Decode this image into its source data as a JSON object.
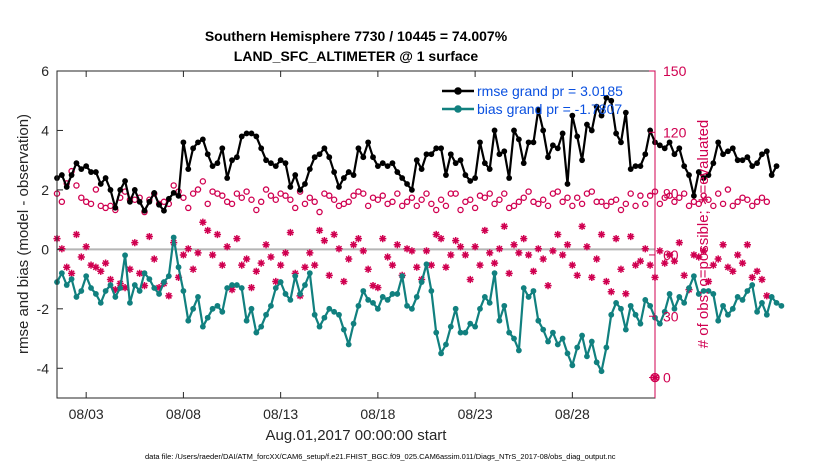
{
  "chart_data": {
    "type": "line",
    "title_line1": "Southern Hemisphere 7730 / 10445 = 74.007%",
    "title_line2": "LAND_SFC_ALTIMETER @ 1 surface",
    "xlabel": "Aug.01,2017 00:00:00 start",
    "ylabel_left": "rmse and bias (model - observation)",
    "ylabel_right": "# of obs: o=possible; ∗=evaluated",
    "xlim": [
      1.5,
      32.25
    ],
    "ylim_left": [
      -5,
      6
    ],
    "ylim_right": [
      -10,
      150
    ],
    "x_ticks": [
      3,
      8,
      13,
      18,
      23,
      28
    ],
    "x_tick_labels": [
      "08/03",
      "08/08",
      "08/13",
      "08/18",
      "08/23",
      "08/28"
    ],
    "y_ticks_left": [
      -4,
      -2,
      0,
      2,
      4,
      6
    ],
    "y_ticks_right": [
      0,
      30,
      60,
      90,
      120,
      150
    ],
    "zero_line": 0,
    "grid": false,
    "legend_position": "top-right",
    "x_step_days": 0.25,
    "series": [
      {
        "name": "rmse grand pr = 3.0185",
        "axis": "left",
        "color": "#000000",
        "marker": "filled-circle",
        "values": [
          2.4,
          2.5,
          2.1,
          2.5,
          2.9,
          2.7,
          2.8,
          2.6,
          2.6,
          2.2,
          2.4,
          2.0,
          1.4,
          2.0,
          2.3,
          1.6,
          2.0,
          1.6,
          1.3,
          1.6,
          1.9,
          1.5,
          1.3,
          1.7,
          1.9,
          1.8,
          3.6,
          2.7,
          3.4,
          3.6,
          3.7,
          3.2,
          2.8,
          2.9,
          3.4,
          2.4,
          3.0,
          3.1,
          3.8,
          3.9,
          3.9,
          3.8,
          3.4,
          3.0,
          2.9,
          2.8,
          3.0,
          2.9,
          2.1,
          2.5,
          2.0,
          2.2,
          2.7,
          3.1,
          3.2,
          3.4,
          3.1,
          2.6,
          2.1,
          2.4,
          2.6,
          2.5,
          3.4,
          3.1,
          3.6,
          3.1,
          2.8,
          2.9,
          2.8,
          2.9,
          2.6,
          2.4,
          2.2,
          2.0,
          3.0,
          2.7,
          3.2,
          3.2,
          3.4,
          3.4,
          2.5,
          3.2,
          2.9,
          3.0,
          2.5,
          2.3,
          2.4,
          3.6,
          2.9,
          2.7,
          4.0,
          3.2,
          3.3,
          2.4,
          4.0,
          3.7,
          2.9,
          3.6,
          3.6,
          4.7,
          4.0,
          3.1,
          3.5,
          3.4,
          3.9,
          2.2,
          4.5,
          3.8,
          3.0,
          4.2,
          4.0,
          4.8,
          4.5,
          5.1,
          5.0,
          3.9,
          3.6,
          4.6,
          2.7,
          2.8,
          2.8,
          3.2,
          4.0,
          3.6,
          3.5,
          3.4,
          3.6,
          3.2,
          3.4,
          2.8,
          2.5,
          1.8,
          2.6,
          2.4,
          2.5,
          2.9,
          3.6,
          3.2,
          3.3,
          3.4,
          3.0,
          3.0,
          3.1,
          2.8,
          2.9,
          3.2,
          3.3,
          2.5,
          2.8
        ]
      },
      {
        "name": "bias grand pr = -1.7807",
        "axis": "left",
        "color": "#11807f",
        "marker": "filled-circle",
        "values": [
          -1.1,
          -0.8,
          -1.2,
          -1.0,
          -1.6,
          -1.4,
          -0.9,
          -1.3,
          -1.5,
          -1.8,
          -1.4,
          -1.2,
          -1.6,
          -1.3,
          -0.2,
          -1.8,
          -1.2,
          -1.4,
          -0.8,
          -1.0,
          -1.3,
          -1.5,
          -1.1,
          -0.9,
          0.4,
          -0.6,
          -1.4,
          -2.4,
          -2.0,
          -1.6,
          -2.6,
          -2.3,
          -2.0,
          -1.9,
          -2.1,
          -1.3,
          -1.2,
          -1.2,
          -1.3,
          -2.4,
          -2.0,
          -2.8,
          -2.6,
          -2.2,
          -1.9,
          -1.3,
          -1.1,
          -1.5,
          -1.7,
          -0.9,
          -1.5,
          -1.2,
          -0.8,
          -2.2,
          -2.6,
          -2.3,
          -2.0,
          -2.1,
          -2.2,
          -2.7,
          -3.2,
          -2.5,
          -1.9,
          -1.4,
          -1.7,
          -1.8,
          -2.0,
          -1.6,
          -1.7,
          -1.5,
          -1.5,
          -0.9,
          -1.9,
          -2.0,
          -1.6,
          -1.1,
          -0.5,
          -1.4,
          -2.8,
          -3.5,
          -3.2,
          -2.6,
          -2.0,
          -2.8,
          -2.8,
          -2.5,
          -2.6,
          -2.0,
          -1.6,
          -1.8,
          -0.8,
          -2.4,
          -1.9,
          -2.8,
          -3.0,
          -3.4,
          -1.3,
          -1.6,
          -1.4,
          -2.4,
          -2.7,
          -3.1,
          -2.8,
          -3.2,
          -3.0,
          -3.5,
          -3.9,
          -3.3,
          -2.9,
          -3.6,
          -3.1,
          -3.8,
          -4.1,
          -3.3,
          -2.2,
          -1.8,
          -2.0,
          -2.7,
          -1.9,
          -2.2,
          -2.5,
          -1.7,
          -1.9,
          -2.3,
          -2.5,
          -2.1,
          -1.5,
          -2.0,
          -1.6,
          -1.8,
          -1.3,
          -0.9,
          -1.5,
          -1.4,
          -1.4,
          -1.5,
          -2.4,
          -1.9,
          -2.2,
          -2.0,
          -1.6,
          -1.7,
          -1.4,
          -1.2,
          -2.1,
          -1.8,
          -2.2,
          -1.6,
          -1.8,
          -1.9
        ]
      },
      {
        "name": "possible",
        "axis": "right",
        "color": "#d00050",
        "marker": "open-circle",
        "values": [
          90,
          86,
          95,
          101,
          94,
          88,
          86,
          85,
          92,
          84,
          83,
          84,
          82,
          88,
          91,
          87,
          87,
          88,
          81,
          87,
          90,
          85,
          86,
          85,
          94,
          91,
          88,
          83,
          90,
          92,
          96,
          85,
          91,
          90,
          89,
          86,
          85,
          90,
          88,
          91,
          87,
          82,
          86,
          92,
          89,
          87,
          90,
          89,
          87,
          83,
          91,
          85,
          88,
          86,
          81,
          90,
          89,
          87,
          84,
          85,
          86,
          89,
          91,
          90,
          84,
          88,
          87,
          89,
          85,
          86,
          90,
          84,
          86,
          88,
          84,
          87,
          90,
          85,
          82,
          87,
          84,
          90,
          90,
          82,
          86,
          87,
          83,
          89,
          88,
          90,
          85,
          87,
          90,
          83,
          84,
          86,
          88,
          91,
          86,
          85,
          87,
          84,
          90,
          91,
          86,
          88,
          84,
          88,
          85,
          90,
          91,
          86,
          86,
          84,
          86,
          87,
          82,
          85,
          90,
          84,
          89,
          85,
          89,
          91,
          85,
          88,
          89,
          86,
          88,
          90,
          84,
          86,
          85,
          89,
          87,
          84,
          90,
          85,
          92,
          84,
          86,
          88,
          87,
          84,
          86,
          88,
          86
        ]
      },
      {
        "name": "evaluated",
        "axis": "right",
        "color": "#d00050",
        "marker": "asterisk",
        "values": [
          68,
          63,
          54,
          51,
          70,
          59,
          64,
          55,
          54,
          52,
          56,
          48,
          43,
          46,
          44,
          53,
          66,
          51,
          45,
          69,
          58,
          44,
          46,
          40,
          66,
          49,
          60,
          63,
          53,
          61,
          76,
          72,
          60,
          70,
          55,
          64,
          43,
          68,
          55,
          58,
          44,
          52,
          56,
          65,
          59,
          47,
          55,
          61,
          71,
          51,
          40,
          54,
          61,
          55,
          72,
          67,
          50,
          70,
          63,
          47,
          58,
          65,
          68,
          62,
          53,
          45,
          44,
          68,
          59,
          55,
          65,
          50,
          63,
          62,
          54,
          48,
          62,
          55,
          70,
          68,
          54,
          60,
          67,
          64,
          60,
          48,
          64,
          55,
          72,
          61,
          56,
          63,
          74,
          51,
          65,
          61,
          68,
          60,
          52,
          63,
          58,
          45,
          62,
          70,
          60,
          65,
          55,
          50,
          74,
          64,
          49,
          58,
          70,
          47,
          42,
          68,
          53,
          41,
          69,
          55,
          57,
          63,
          55,
          49,
          62,
          56,
          60,
          57,
          66,
          50,
          43,
          60,
          59,
          62,
          47,
          55,
          58,
          65,
          54,
          52,
          60,
          56,
          65,
          49,
          52,
          48,
          40
        ]
      }
    ],
    "footer_text": "data file: /Users/raeder/DAI/ATM_forcXX/CAM6_setup/f.e21.FHIST_BGC.f09_025.CAM6assim.011/Diags_NTrS_2017-08/obs_diag_output.nc"
  }
}
